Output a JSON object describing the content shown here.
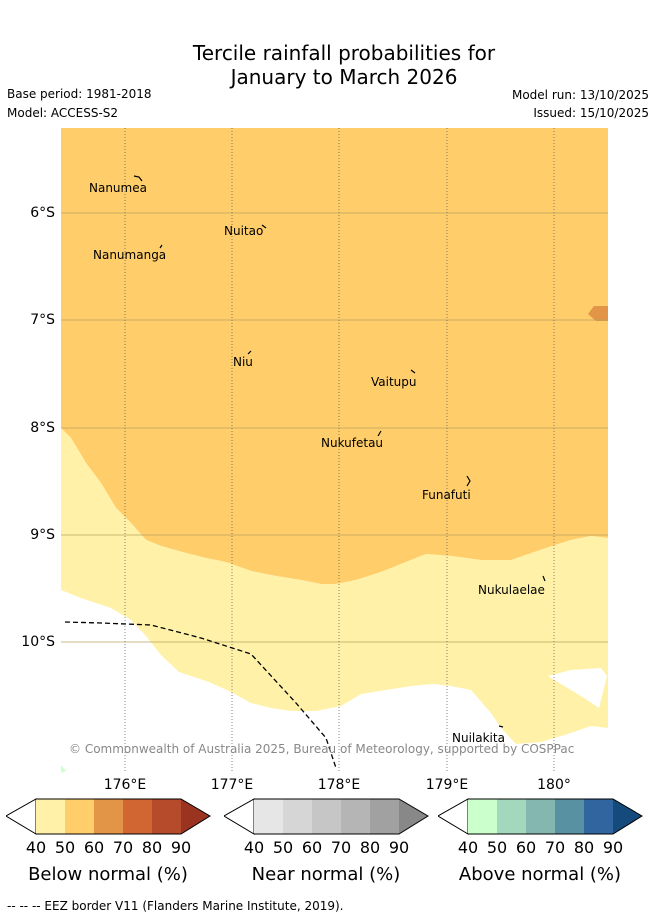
{
  "title_line1": "Tercile rainfall probabilities for",
  "title_line2": "January to March 2026",
  "base_period": "Base period: 1981-2018",
  "model": "Model: ACCESS-S2",
  "model_run": "Model run: 13/10/2025",
  "issued": "Issued: 15/10/2025",
  "lat_labels": [
    "6°S",
    "7°S",
    "8°S",
    "9°S",
    "10°S"
  ],
  "lon_labels": [
    "176°E",
    "177°E",
    "178°E",
    "179°E",
    "180°"
  ],
  "places": [
    "Nanumea",
    "Nuitao",
    "Nanumanga",
    "Niu",
    "Vaitupu",
    "Nukufetau",
    "Funafuti",
    "Nukulaelae",
    "Nuilakita"
  ],
  "copyright": "© Commonwealth of Australia 2025, Bureau of Meteorology, supported by COSPPac",
  "colorbars": [
    {
      "title": "Below normal (%)",
      "colors": [
        "#fff2a8",
        "#ffce6a",
        "#e29447",
        "#d26633",
        "#b54b2a",
        "#9b3321"
      ]
    },
    {
      "title": "Near normal (%)",
      "colors": [
        "#e6e6e6",
        "#d6d6d6",
        "#c6c6c6",
        "#b5b5b5",
        "#a1a1a1",
        "#888888"
      ]
    },
    {
      "title": "Above normal (%)",
      "colors": [
        "#cbffcc",
        "#a3d8bd",
        "#83b7b0",
        "#5892a2",
        "#30659f",
        "#154a7d"
      ]
    }
  ],
  "ticks": [
    "40",
    "50",
    "60",
    "70",
    "80",
    "90"
  ],
  "footer": "--  --  -- EEZ border V11 (Flanders Marine Institute, 2019)."
}
